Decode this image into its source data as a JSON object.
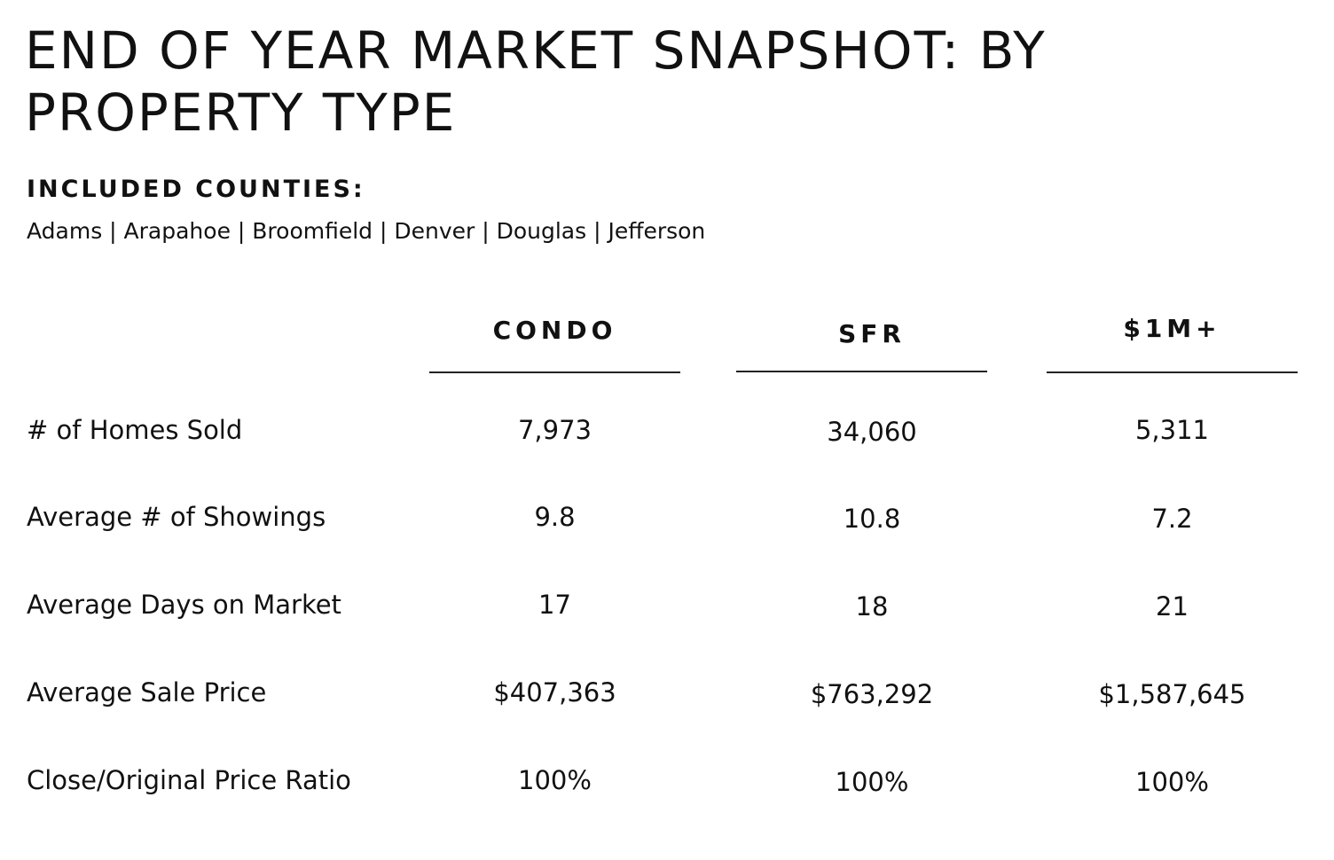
{
  "title": "END OF YEAR MARKET SNAPSHOT: BY PROPERTY TYPE",
  "counties": {
    "label": "INCLUDED COUNTIES:",
    "list": "Adams | Arapahoe | Broomfield | Denver | Douglas | Jefferson"
  },
  "table": {
    "columns": [
      "CONDO",
      "SFR",
      "$1M+"
    ],
    "rows": [
      {
        "label": "# of Homes Sold",
        "values": [
          "7,973",
          "34,060",
          "5,311"
        ]
      },
      {
        "label": "Average # of Showings",
        "values": [
          "9.8",
          "10.8",
          "7.2"
        ]
      },
      {
        "label": "Average Days on Market",
        "values": [
          "17",
          "18",
          "21"
        ]
      },
      {
        "label": "Average Sale Price",
        "values": [
          "$407,363",
          "$763,292",
          "$1,587,645"
        ]
      },
      {
        "label": "Close/Original Price Ratio",
        "values": [
          "100%",
          "100%",
          "100%"
        ]
      }
    ]
  }
}
